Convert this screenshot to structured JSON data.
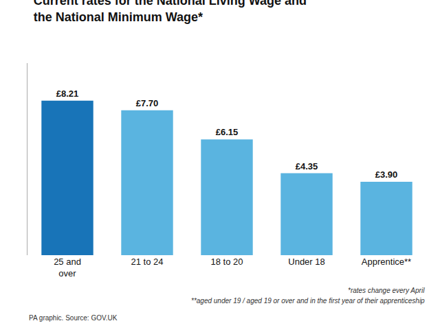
{
  "chart_data": {
    "type": "bar",
    "title": "Current rates for the National Living Wage and\nthe National Minimum Wage*",
    "categories": [
      "25 and\nover",
      "21 to 24",
      "18 to 20",
      "Under 18",
      "Apprentice**"
    ],
    "values": [
      8.21,
      7.7,
      6.15,
      4.35,
      3.9
    ],
    "value_labels": [
      "£8.21",
      "£7.70",
      "£6.15",
      "£4.35",
      "£3.90"
    ],
    "data_labels": true,
    "colors": [
      "#1874b8",
      "#5ab4e0",
      "#5ab4e0",
      "#5ab4e0",
      "#5ab4e0"
    ],
    "ylim": [
      0,
      10.2
    ],
    "tick_labels": "x",
    "grid": false,
    "annotations": [
      "*rates change every April",
      "**aged under 19 / aged 19 or over and in the first year of their apprenticeship",
      "PA graphic. Source: GOV.UK"
    ]
  }
}
